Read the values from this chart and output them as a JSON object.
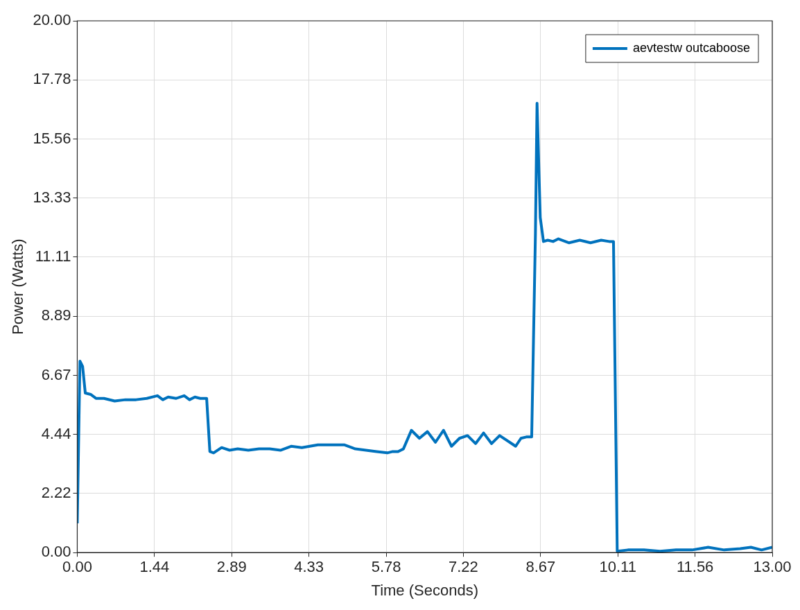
{
  "chart_data": {
    "type": "line",
    "xlabel": "Time (Seconds)",
    "ylabel": "Power (Watts)",
    "xlim": [
      0,
      13
    ],
    "ylim": [
      0,
      20
    ],
    "xticks": [
      {
        "value": 0,
        "label": "0.00"
      },
      {
        "value": 1.444,
        "label": "1.44"
      },
      {
        "value": 2.889,
        "label": "2.89"
      },
      {
        "value": 4.333,
        "label": "4.33"
      },
      {
        "value": 5.778,
        "label": "5.78"
      },
      {
        "value": 7.222,
        "label": "7.22"
      },
      {
        "value": 8.667,
        "label": "8.67"
      },
      {
        "value": 10.111,
        "label": "10.11"
      },
      {
        "value": 11.556,
        "label": "11.56"
      },
      {
        "value": 13,
        "label": "13.00"
      }
    ],
    "yticks": [
      {
        "value": 0,
        "label": "0.00"
      },
      {
        "value": 2.222,
        "label": "2.22"
      },
      {
        "value": 4.444,
        "label": "4.44"
      },
      {
        "value": 6.667,
        "label": "6.67"
      },
      {
        "value": 8.889,
        "label": "8.89"
      },
      {
        "value": 11.111,
        "label": "11.11"
      },
      {
        "value": 13.333,
        "label": "13.33"
      },
      {
        "value": 15.556,
        "label": "15.56"
      },
      {
        "value": 17.778,
        "label": "17.78"
      },
      {
        "value": 20,
        "label": "20.00"
      }
    ],
    "grid": true,
    "legend": "top right",
    "marker": "none",
    "line_style": "solid",
    "series": [
      {
        "name": "aevtestw outcaboose",
        "color": "#0072bd",
        "x": [
          0,
          0.05,
          0.1,
          0.15,
          0.25,
          0.35,
          0.5,
          0.7,
          0.9,
          1.1,
          1.3,
          1.5,
          1.6,
          1.7,
          1.85,
          2.0,
          2.1,
          2.2,
          2.3,
          2.42,
          2.48,
          2.55,
          2.7,
          2.85,
          3.0,
          3.2,
          3.4,
          3.6,
          3.8,
          4.0,
          4.2,
          4.5,
          4.8,
          5.0,
          5.2,
          5.4,
          5.6,
          5.8,
          5.9,
          6.0,
          6.1,
          6.25,
          6.4,
          6.55,
          6.7,
          6.85,
          7.0,
          7.15,
          7.3,
          7.45,
          7.6,
          7.75,
          7.9,
          8.2,
          8.3,
          8.4,
          8.5,
          8.57,
          8.6,
          8.66,
          8.72,
          8.8,
          8.9,
          9.0,
          9.2,
          9.4,
          9.6,
          9.8,
          9.95,
          10.03,
          10.1,
          10.3,
          10.6,
          10.9,
          11.2,
          11.5,
          11.8,
          12.1,
          12.4,
          12.6,
          12.8,
          13.0
        ],
        "values": [
          1.1,
          7.2,
          7.0,
          6.0,
          5.95,
          5.8,
          5.8,
          5.7,
          5.75,
          5.75,
          5.8,
          5.9,
          5.75,
          5.85,
          5.8,
          5.9,
          5.75,
          5.85,
          5.8,
          5.8,
          3.8,
          3.75,
          3.95,
          3.85,
          3.9,
          3.85,
          3.9,
          3.9,
          3.85,
          4.0,
          3.95,
          4.05,
          4.05,
          4.05,
          3.9,
          3.85,
          3.8,
          3.75,
          3.8,
          3.8,
          3.9,
          4.6,
          4.3,
          4.55,
          4.15,
          4.6,
          4.0,
          4.3,
          4.4,
          4.1,
          4.5,
          4.1,
          4.4,
          4.0,
          4.3,
          4.35,
          4.35,
          12.0,
          16.9,
          12.6,
          11.7,
          11.75,
          11.7,
          11.8,
          11.65,
          11.75,
          11.65,
          11.75,
          11.7,
          11.7,
          0.05,
          0.1,
          0.1,
          0.05,
          0.1,
          0.1,
          0.2,
          0.1,
          0.15,
          0.2,
          0.1,
          0.2
        ]
      }
    ]
  }
}
